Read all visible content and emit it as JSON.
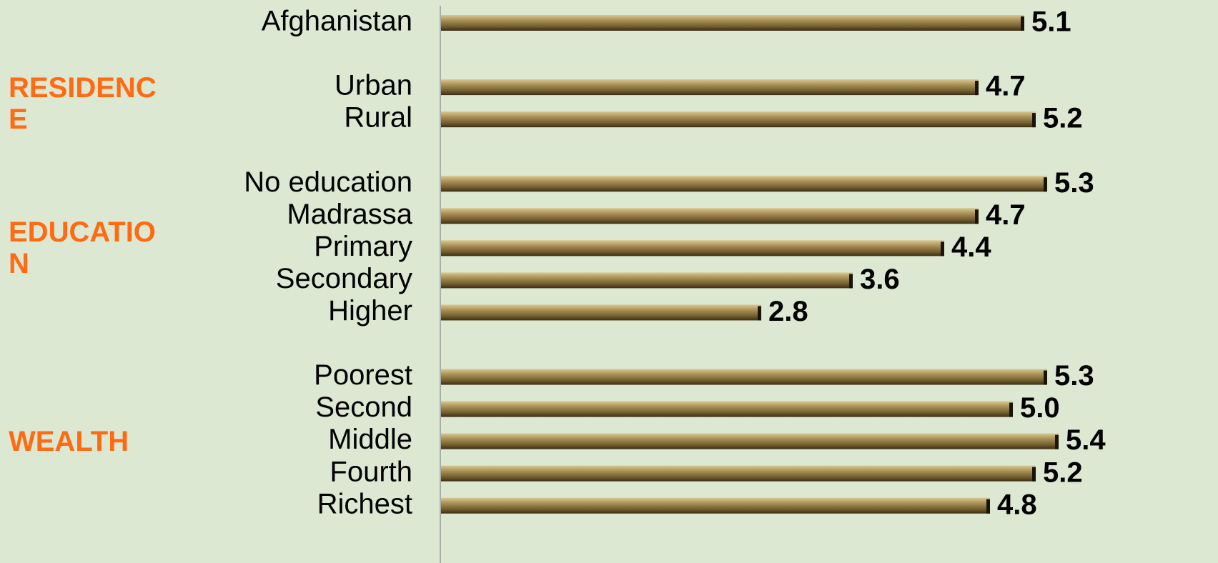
{
  "chart_data": {
    "type": "bar",
    "orientation": "horizontal",
    "color": "#8a7440",
    "xlim": [
      0,
      6.2
    ],
    "groups": [
      {
        "categories": [
          "Afghanistan"
        ],
        "values": [
          5.1
        ]
      },
      {
        "name": "RESIDENCE",
        "categories": [
          "Urban",
          "Rural"
        ],
        "values": [
          4.7,
          5.2
        ]
      },
      {
        "name": "EDUCATION",
        "categories": [
          "No education",
          "Madrassa",
          "Primary",
          "Secondary",
          "Higher"
        ],
        "values": [
          5.3,
          4.7,
          4.4,
          3.6,
          2.8
        ]
      },
      {
        "name": "WEALTH",
        "categories": [
          "Poorest",
          "Second",
          "Middle",
          "Fourth",
          "Richest"
        ],
        "values": [
          5.3,
          5.0,
          5.4,
          5.2,
          4.8
        ],
        "value_labels": [
          "5.3",
          "5.0",
          "5.4",
          "5.2",
          "4.8"
        ]
      }
    ]
  }
}
